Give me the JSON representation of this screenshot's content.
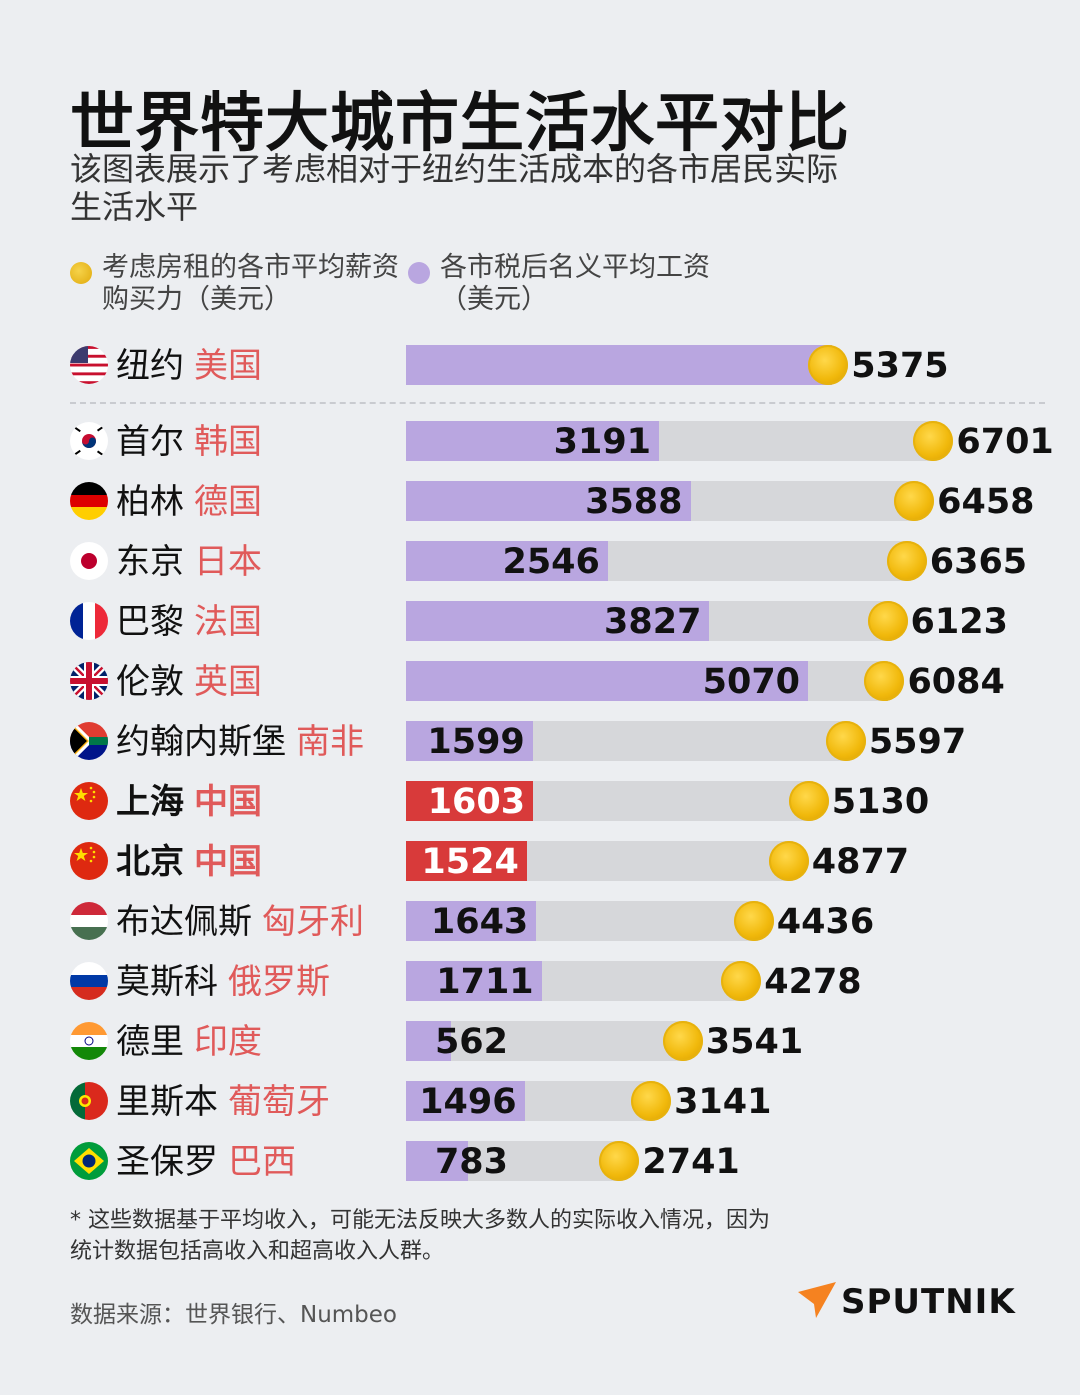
{
  "title": "世界特大城市生活水平对比",
  "subtitle": "该图表展示了考虑相对于纽约生活成本的各市居民实际生活水平",
  "legend": {
    "coin_label": "考虑房租的各市平均薪资购买力（美元）",
    "salary_label": "各市税后名义平均工资（美元）"
  },
  "colors": {
    "salary": "#b9a6e0",
    "highlight": "#d83a3a",
    "track": "#d6d7da",
    "coin": "#f1b90c",
    "country": "#e05a5a"
  },
  "chart_data": {
    "type": "bar",
    "orientation": "horizontal",
    "series": [
      {
        "name": "各市税后名义平均工资（美元）",
        "values": [
          5375,
          3191,
          3588,
          2546,
          3827,
          5070,
          1599,
          1603,
          1524,
          1643,
          1711,
          562,
          1496,
          783
        ]
      },
      {
        "name": "考虑房租的各市平均薪资购买力（美元）",
        "values": [
          5375,
          6701,
          6458,
          6365,
          6123,
          6084,
          5597,
          5130,
          4877,
          4436,
          4278,
          3541,
          3141,
          2741
        ]
      }
    ],
    "rows": [
      {
        "city": "纽约",
        "country": "美国",
        "flag": "us-flag-icon",
        "salary": 5375,
        "power": 5375,
        "highlight": false
      },
      {
        "city": "首尔",
        "country": "韩国",
        "flag": "kr-flag-icon",
        "salary": 3191,
        "power": 6701,
        "highlight": false
      },
      {
        "city": "柏林",
        "country": "德国",
        "flag": "de-flag-icon",
        "salary": 3588,
        "power": 6458,
        "highlight": false
      },
      {
        "city": "东京",
        "country": "日本",
        "flag": "jp-flag-icon",
        "salary": 2546,
        "power": 6365,
        "highlight": false
      },
      {
        "city": "巴黎",
        "country": "法国",
        "flag": "fr-flag-icon",
        "salary": 3827,
        "power": 6123,
        "highlight": false
      },
      {
        "city": "伦敦",
        "country": "英国",
        "flag": "gb-flag-icon",
        "salary": 5070,
        "power": 6084,
        "highlight": false
      },
      {
        "city": "约翰内斯堡",
        "country": "南非",
        "flag": "za-flag-icon",
        "salary": 1599,
        "power": 5597,
        "highlight": false
      },
      {
        "city": "上海",
        "country": "中国",
        "flag": "cn-flag-icon",
        "salary": 1603,
        "power": 5130,
        "highlight": true
      },
      {
        "city": "北京",
        "country": "中国",
        "flag": "cn-flag-icon",
        "salary": 1524,
        "power": 4877,
        "highlight": true
      },
      {
        "city": "布达佩斯",
        "country": "匈牙利",
        "flag": "hu-flag-icon",
        "salary": 1643,
        "power": 4436,
        "highlight": false
      },
      {
        "city": "莫斯科",
        "country": "俄罗斯",
        "flag": "ru-flag-icon",
        "salary": 1711,
        "power": 4278,
        "highlight": false
      },
      {
        "city": "德里",
        "country": "印度",
        "flag": "in-flag-icon",
        "salary": 562,
        "power": 3541,
        "highlight": false
      },
      {
        "city": "里斯本",
        "country": "葡萄牙",
        "flag": "pt-flag-icon",
        "salary": 1496,
        "power": 3141,
        "highlight": false
      },
      {
        "city": "圣保罗",
        "country": "巴西",
        "flag": "br-flag-icon",
        "salary": 783,
        "power": 2741,
        "highlight": false
      }
    ]
  },
  "footnote": "* 这些数据基于平均收入，可能无法反映大多数人的实际收入情况，因为统计数据包括高收入和超高收入人群。",
  "source": "数据来源：世界银行、Numbeo",
  "logo": {
    "name": "SPUTNIK",
    "icon": "sputnik-logo-icon"
  }
}
